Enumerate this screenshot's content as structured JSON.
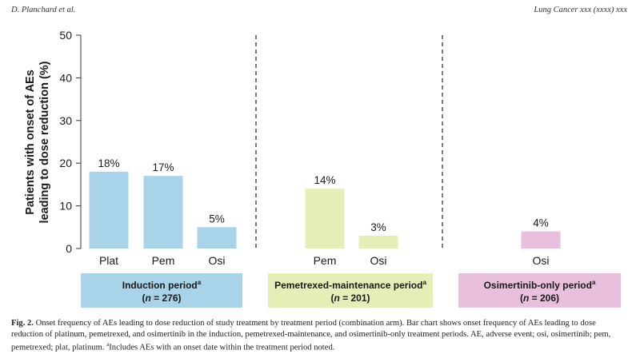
{
  "header": {
    "left": "D. Planchard et al.",
    "right": "Lung Cancer xxx (xxxx) xxx"
  },
  "chart_data": {
    "type": "bar",
    "ylabel": "Patients with onset of AEs leading to dose reduction (%)",
    "ylabel_line1": "Patients with onset of AEs",
    "ylabel_line2": "leading to dose reduction (%)",
    "ylim": [
      0,
      50
    ],
    "yticks": [
      0,
      10,
      20,
      30,
      40,
      50
    ],
    "grid": false,
    "bars": [
      {
        "category": "Plat",
        "period": "Induction period",
        "value": 18,
        "label": "18%"
      },
      {
        "category": "Pem",
        "period": "Induction period",
        "value": 17,
        "label": "17%"
      },
      {
        "category": "Osi",
        "period": "Induction period",
        "value": 5,
        "label": "5%"
      },
      {
        "category": "Pem",
        "period": "Pemetrexed-maintenance period",
        "value": 14,
        "label": "14%"
      },
      {
        "category": "Osi",
        "period": "Pemetrexed-maintenance period",
        "value": 3,
        "label": "3%"
      },
      {
        "category": "Osi",
        "period": "Osimertinib-only period",
        "value": 4,
        "label": "4%"
      }
    ]
  },
  "periods": [
    {
      "title": "Induction period",
      "sup": "a",
      "n_prefix": "(",
      "n_var": "n",
      "n_value": " = 276)",
      "color": "#a9d3e8"
    },
    {
      "title": "Pemetrexed-maintenance period",
      "sup": "a",
      "n_prefix": "(",
      "n_var": "n",
      "n_value": " = 201)",
      "color": "#e6edb6"
    },
    {
      "title": "Osimertinib-only period",
      "sup": "a",
      "n_prefix": "(",
      "n_var": "n",
      "n_value": " = 206)",
      "color": "#e8bfdc"
    }
  ],
  "caption": {
    "label": "Fig. 2.",
    "text": " Onset frequency of AEs leading to dose reduction of study treatment by treatment period (combination arm). Bar chart shows onset frequency of AEs leading to dose reduction of platinum, pemetrexed, and osimertinib in the induction, pemetrexed-maintenance, and osimertinib-only treatment periods. AE, adverse event; osi, osimertinib; pem, pemetrexed; plat, platinum. ",
    "footnote_sup": "a",
    "footnote": "Includes AEs with an onset date within the treatment period noted."
  }
}
